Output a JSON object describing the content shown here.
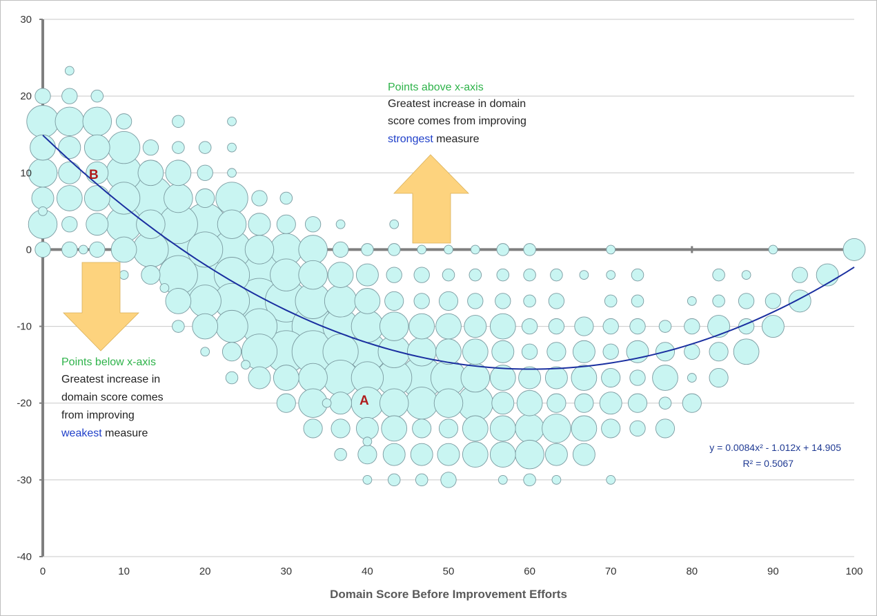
{
  "colors": {
    "bubble_fill": "#c9f5f2",
    "bubble_stroke": "#7a9aa0",
    "trend": "#1a2fa0",
    "arrow_fill": "#fdd37e",
    "axis": "#7f7f7f",
    "grid": "#c8c8c8",
    "label_red": "#b01c1c",
    "green_text": "#2eb34a",
    "blue_text": "#1f3fc9"
  },
  "chart_data": {
    "type": "bubble",
    "title": "",
    "xlabel": "Domain Score Before Improvement Efforts",
    "ylabel": "",
    "xlim": [
      0,
      100
    ],
    "ylim": [
      -40,
      30
    ],
    "x_ticks": [
      "0",
      "10",
      "20",
      "30",
      "40",
      "50",
      "60",
      "70",
      "80",
      "90",
      "100"
    ],
    "y_ticks": [
      "30",
      "20",
      "10",
      "0",
      "-10",
      "-20",
      "-30",
      "-40"
    ],
    "grid": "horizontal",
    "bubble_size_note": "radius in relative units",
    "points": [
      [
        3.3,
        23.3,
        1
      ],
      [
        0,
        20,
        3
      ],
      [
        3.3,
        20,
        3
      ],
      [
        6.7,
        20,
        2
      ],
      [
        0,
        16.7,
        8
      ],
      [
        3.3,
        16.7,
        7
      ],
      [
        6.7,
        16.7,
        7
      ],
      [
        10,
        16.7,
        3
      ],
      [
        16.7,
        16.7,
        2
      ],
      [
        23.3,
        16.7,
        1
      ],
      [
        0,
        13.3,
        6
      ],
      [
        3.3,
        13.3,
        5
      ],
      [
        6.7,
        13.3,
        6
      ],
      [
        10,
        13.3,
        8
      ],
      [
        13.3,
        13.3,
        3
      ],
      [
        16.7,
        13.3,
        2
      ],
      [
        20,
        13.3,
        2
      ],
      [
        23.3,
        13.3,
        1
      ],
      [
        0,
        10,
        7
      ],
      [
        3.3,
        10,
        5
      ],
      [
        6.7,
        10,
        5
      ],
      [
        10,
        10,
        9
      ],
      [
        13.3,
        10,
        6
      ],
      [
        16.7,
        10,
        6
      ],
      [
        20,
        10,
        3
      ],
      [
        23.3,
        10,
        1
      ],
      [
        0,
        6.7,
        5
      ],
      [
        3.3,
        6.7,
        6
      ],
      [
        6.7,
        6.7,
        6
      ],
      [
        10,
        6.7,
        8
      ],
      [
        13.3,
        6.7,
        12
      ],
      [
        16.7,
        6.7,
        7
      ],
      [
        20,
        6.7,
        4
      ],
      [
        23.3,
        6.7,
        8
      ],
      [
        26.7,
        6.7,
        3
      ],
      [
        30,
        6.7,
        2
      ],
      [
        0,
        5,
        1
      ],
      [
        0,
        3.3,
        7
      ],
      [
        3.3,
        3.3,
        3
      ],
      [
        6.7,
        3.3,
        5
      ],
      [
        10,
        3.3,
        9
      ],
      [
        13.3,
        3.3,
        7
      ],
      [
        16.7,
        3.3,
        10
      ],
      [
        20,
        3.3,
        11
      ],
      [
        23.3,
        3.3,
        7
      ],
      [
        26.7,
        3.3,
        5
      ],
      [
        30,
        3.3,
        4
      ],
      [
        33.3,
        3.3,
        3
      ],
      [
        36.7,
        3.3,
        1
      ],
      [
        43.3,
        3.3,
        1
      ],
      [
        0,
        0,
        3
      ],
      [
        3.3,
        0,
        3
      ],
      [
        5,
        0,
        1
      ],
      [
        6.7,
        0,
        3
      ],
      [
        10,
        0,
        6
      ],
      [
        13.3,
        0,
        9
      ],
      [
        16.7,
        0,
        12
      ],
      [
        20,
        0,
        9
      ],
      [
        23.3,
        0,
        10
      ],
      [
        26.7,
        0,
        7
      ],
      [
        30,
        0,
        8
      ],
      [
        33.3,
        0,
        7
      ],
      [
        36.7,
        0,
        3
      ],
      [
        40,
        0,
        2
      ],
      [
        43.3,
        0,
        2
      ],
      [
        46.7,
        0,
        1
      ],
      [
        50,
        0,
        1
      ],
      [
        53.3,
        0,
        1
      ],
      [
        56.7,
        0,
        2
      ],
      [
        60,
        0,
        2
      ],
      [
        70,
        0,
        1
      ],
      [
        90,
        0,
        1
      ],
      [
        100,
        0,
        5
      ],
      [
        10,
        -3.3,
        1
      ],
      [
        13.3,
        -3.3,
        4
      ],
      [
        16.7,
        -3.3,
        10
      ],
      [
        20,
        -3.3,
        14
      ],
      [
        23.3,
        -3.3,
        9
      ],
      [
        26.7,
        -3.3,
        12
      ],
      [
        30,
        -3.3,
        8
      ],
      [
        33.3,
        -3.3,
        7
      ],
      [
        36.7,
        -3.3,
        6
      ],
      [
        40,
        -3.3,
        5
      ],
      [
        43.3,
        -3.3,
        3
      ],
      [
        46.7,
        -3.3,
        3
      ],
      [
        50,
        -3.3,
        2
      ],
      [
        53.3,
        -3.3,
        2
      ],
      [
        56.7,
        -3.3,
        2
      ],
      [
        60,
        -3.3,
        2
      ],
      [
        63.3,
        -3.3,
        2
      ],
      [
        66.7,
        -3.3,
        1
      ],
      [
        70,
        -3.3,
        1
      ],
      [
        73.3,
        -3.3,
        2
      ],
      [
        83.3,
        -3.3,
        2
      ],
      [
        86.7,
        -3.3,
        1
      ],
      [
        93.3,
        -3.3,
        3
      ],
      [
        96.7,
        -3.3,
        5
      ],
      [
        15,
        -5,
        1
      ],
      [
        16.7,
        -6.7,
        6
      ],
      [
        20,
        -6.7,
        8
      ],
      [
        23.3,
        -6.7,
        9
      ],
      [
        26.7,
        -6.7,
        12
      ],
      [
        30,
        -6.7,
        11
      ],
      [
        33.3,
        -6.7,
        9
      ],
      [
        36.7,
        -6.7,
        8
      ],
      [
        40,
        -6.7,
        6
      ],
      [
        43.3,
        -6.7,
        4
      ],
      [
        46.7,
        -6.7,
        3
      ],
      [
        50,
        -6.7,
        4
      ],
      [
        53.3,
        -6.7,
        3
      ],
      [
        56.7,
        -6.7,
        3
      ],
      [
        60,
        -6.7,
        2
      ],
      [
        63.3,
        -6.7,
        3
      ],
      [
        70,
        -6.7,
        2
      ],
      [
        73.3,
        -6.7,
        2
      ],
      [
        80,
        -6.7,
        1
      ],
      [
        83.3,
        -6.7,
        2
      ],
      [
        86.7,
        -6.7,
        3
      ],
      [
        90,
        -6.7,
        3
      ],
      [
        93.3,
        -6.7,
        5
      ],
      [
        16.7,
        -10,
        2
      ],
      [
        20,
        -10,
        6
      ],
      [
        23.3,
        -10,
        8
      ],
      [
        26.7,
        -10,
        9
      ],
      [
        30,
        -10,
        12
      ],
      [
        33.3,
        -10,
        11
      ],
      [
        36.7,
        -10,
        9
      ],
      [
        40,
        -10,
        8
      ],
      [
        43.3,
        -10,
        7
      ],
      [
        46.7,
        -10,
        6
      ],
      [
        50,
        -10,
        6
      ],
      [
        53.3,
        -10,
        5
      ],
      [
        56.7,
        -10,
        6
      ],
      [
        60,
        -10,
        3
      ],
      [
        63.3,
        -10,
        3
      ],
      [
        66.7,
        -10,
        4
      ],
      [
        70,
        -10,
        3
      ],
      [
        73.3,
        -10,
        3
      ],
      [
        76.7,
        -10,
        2
      ],
      [
        80,
        -10,
        3
      ],
      [
        83.3,
        -10,
        5
      ],
      [
        86.7,
        -10,
        3
      ],
      [
        90,
        -10,
        5
      ],
      [
        20,
        -13.3,
        1
      ],
      [
        23.3,
        -13.3,
        4
      ],
      [
        26.7,
        -13.3,
        9
      ],
      [
        30,
        -13.3,
        11
      ],
      [
        33.3,
        -13.3,
        11
      ],
      [
        36.7,
        -13.3,
        9
      ],
      [
        40,
        -13.3,
        10
      ],
      [
        43.3,
        -13.3,
        8
      ],
      [
        46.7,
        -13.3,
        7
      ],
      [
        50,
        -13.3,
        6
      ],
      [
        53.3,
        -13.3,
        6
      ],
      [
        56.7,
        -13.3,
        5
      ],
      [
        60,
        -13.3,
        3
      ],
      [
        63.3,
        -13.3,
        4
      ],
      [
        66.7,
        -13.3,
        5
      ],
      [
        70,
        -13.3,
        3
      ],
      [
        73.3,
        -13.3,
        5
      ],
      [
        76.7,
        -13.3,
        4
      ],
      [
        80,
        -13.3,
        3
      ],
      [
        83.3,
        -13.3,
        4
      ],
      [
        86.7,
        -13.3,
        6
      ],
      [
        25,
        -15,
        1
      ],
      [
        23.3,
        -16.7,
        2
      ],
      [
        26.7,
        -16.7,
        5
      ],
      [
        30,
        -16.7,
        6
      ],
      [
        33.3,
        -16.7,
        7
      ],
      [
        36.7,
        -16.7,
        9
      ],
      [
        40,
        -16.7,
        8
      ],
      [
        43.3,
        -16.7,
        9
      ],
      [
        46.7,
        -16.7,
        11
      ],
      [
        50,
        -16.7,
        9
      ],
      [
        53.3,
        -16.7,
        7
      ],
      [
        56.7,
        -16.7,
        6
      ],
      [
        60,
        -16.7,
        5
      ],
      [
        63.3,
        -16.7,
        5
      ],
      [
        66.7,
        -16.7,
        6
      ],
      [
        70,
        -16.7,
        4
      ],
      [
        73.3,
        -16.7,
        3
      ],
      [
        76.7,
        -16.7,
        6
      ],
      [
        80,
        -16.7,
        1
      ],
      [
        83.3,
        -16.7,
        4
      ],
      [
        30,
        -20,
        4
      ],
      [
        33.3,
        -20,
        7
      ],
      [
        35,
        -20,
        1
      ],
      [
        36.7,
        -20,
        5
      ],
      [
        40,
        -20,
        8
      ],
      [
        43.3,
        -20,
        7
      ],
      [
        46.7,
        -20,
        8
      ],
      [
        50,
        -20,
        7
      ],
      [
        53.3,
        -20,
        9
      ],
      [
        56.7,
        -20,
        5
      ],
      [
        60,
        -20,
        6
      ],
      [
        63.3,
        -20,
        4
      ],
      [
        66.7,
        -20,
        4
      ],
      [
        70,
        -20,
        5
      ],
      [
        73.3,
        -20,
        4
      ],
      [
        76.7,
        -20,
        2
      ],
      [
        80,
        -20,
        4
      ],
      [
        33.3,
        -23.3,
        4
      ],
      [
        36.7,
        -23.3,
        4
      ],
      [
        40,
        -23.3,
        5
      ],
      [
        43.3,
        -23.3,
        6
      ],
      [
        46.7,
        -23.3,
        4
      ],
      [
        50,
        -23.3,
        4
      ],
      [
        53.3,
        -23.3,
        6
      ],
      [
        56.7,
        -23.3,
        6
      ],
      [
        60,
        -23.3,
        7
      ],
      [
        63.3,
        -23.3,
        7
      ],
      [
        66.7,
        -23.3,
        6
      ],
      [
        70,
        -23.3,
        4
      ],
      [
        73.3,
        -23.3,
        3
      ],
      [
        76.7,
        -23.3,
        4
      ],
      [
        40,
        -25,
        1
      ],
      [
        36.7,
        -26.7,
        2
      ],
      [
        40,
        -26.7,
        4
      ],
      [
        43.3,
        -26.7,
        5
      ],
      [
        46.7,
        -26.7,
        5
      ],
      [
        50,
        -26.7,
        5
      ],
      [
        53.3,
        -26.7,
        6
      ],
      [
        56.7,
        -26.7,
        6
      ],
      [
        60,
        -26.7,
        7
      ],
      [
        63.3,
        -26.7,
        5
      ],
      [
        66.7,
        -26.7,
        5
      ],
      [
        40,
        -30,
        1
      ],
      [
        43.3,
        -30,
        2
      ],
      [
        46.7,
        -30,
        2
      ],
      [
        50,
        -30,
        3
      ],
      [
        56.7,
        -30,
        1
      ],
      [
        60,
        -30,
        2
      ],
      [
        63.3,
        -30,
        1
      ],
      [
        70,
        -30,
        1
      ]
    ],
    "trendline": {
      "a": 0.0084,
      "b": -1.012,
      "c": 14.905
    },
    "equation": "y = 0.0084x² - 1.012x + 14.905",
    "r2": "R² = 0.5067"
  },
  "annotations": {
    "above_title": "Points above x-axis",
    "above_line1": "Greatest increase in domain",
    "above_line2": "score comes from improving",
    "above_highlight": "strongest",
    "above_tail": " measure",
    "below_title": "Points below x-axis",
    "below_line1": "Greatest increase in",
    "below_line2": "domain score comes",
    "below_line3": "from improving",
    "below_highlight": "weakest",
    "below_tail": " measure",
    "label_a": "A",
    "label_b": "B"
  }
}
